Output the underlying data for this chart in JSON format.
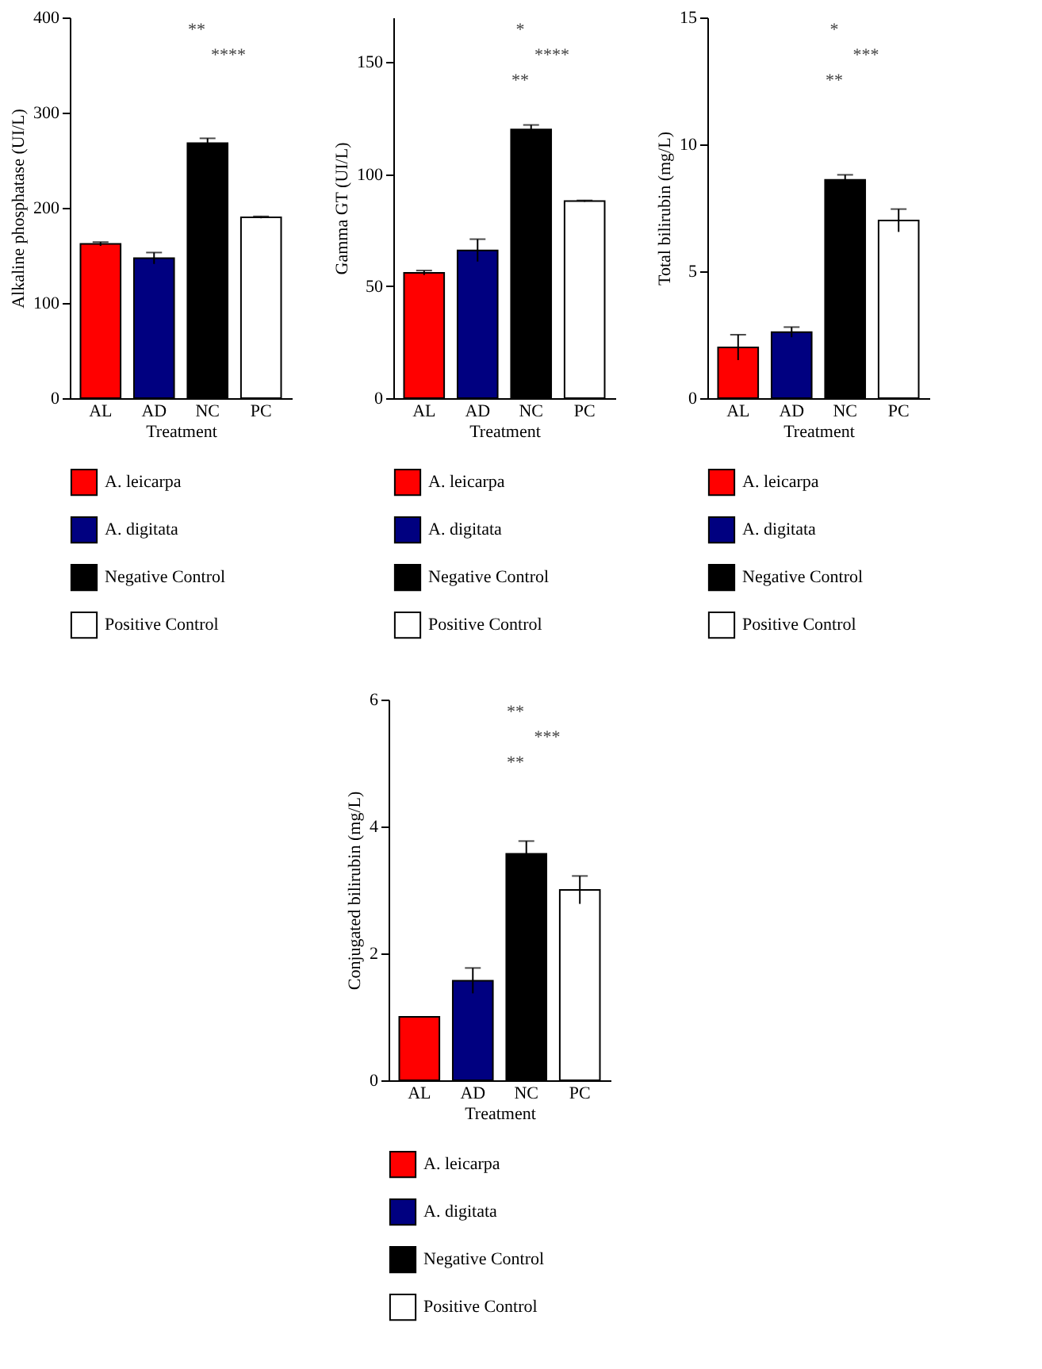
{
  "chart_data": [
    {
      "type": "bar",
      "categories": [
        "AL",
        "AD",
        "NC",
        "PC"
      ],
      "xlabel": "Treatment",
      "ylabel": "Alkaline phosphatase (UI/L)",
      "ylim": [
        0,
        400
      ],
      "yticks": [
        0,
        100,
        200,
        300,
        400
      ],
      "grid": false,
      "legend": "bottom",
      "series": [
        {
          "name": "A. leicarpa",
          "color": "#ff0000",
          "values": [
            162,
            null,
            null,
            null
          ],
          "errors": [
            2,
            null,
            null,
            null
          ]
        },
        {
          "name": "A. digitata",
          "color": "#000080",
          "values": [
            null,
            147,
            null,
            null
          ],
          "errors": [
            null,
            6,
            null,
            null
          ]
        },
        {
          "name": "Negative Control",
          "color": "#000000",
          "values": [
            null,
            null,
            268,
            null
          ],
          "errors": [
            null,
            null,
            5,
            null
          ]
        },
        {
          "name": "Positive Control",
          "color": "#ffffff",
          "values": [
            null,
            null,
            null,
            190
          ],
          "errors": [
            null,
            null,
            null,
            1
          ]
        }
      ],
      "annotations": [
        "**",
        "****"
      ]
    },
    {
      "type": "bar",
      "categories": [
        "AL",
        "AD",
        "NC",
        "PC"
      ],
      "xlabel": "Treatment",
      "ylabel": "Gamma GT (UI/L)",
      "ylim": [
        0,
        170
      ],
      "yticks": [
        0,
        50,
        100,
        150
      ],
      "grid": false,
      "legend": "bottom",
      "series": [
        {
          "name": "A. leicarpa",
          "color": "#ff0000",
          "values": [
            56,
            null,
            null,
            null
          ],
          "errors": [
            1,
            null,
            null,
            null
          ]
        },
        {
          "name": "A. digitata",
          "color": "#000080",
          "values": [
            null,
            66,
            null,
            null
          ],
          "errors": [
            null,
            5,
            null,
            null
          ]
        },
        {
          "name": "Negative Control",
          "color": "#000000",
          "values": [
            null,
            null,
            120,
            null
          ],
          "errors": [
            null,
            null,
            2,
            null
          ]
        },
        {
          "name": "Positive Control",
          "color": "#ffffff",
          "values": [
            null,
            null,
            null,
            88
          ],
          "errors": [
            null,
            null,
            null,
            0.3
          ]
        }
      ],
      "annotations": [
        "*",
        "****",
        "**"
      ]
    },
    {
      "type": "bar",
      "categories": [
        "AL",
        "AD",
        "NC",
        "PC"
      ],
      "xlabel": "Treatment",
      "ylabel": "Total bilirubin (mg/L)",
      "ylim": [
        0,
        15
      ],
      "yticks": [
        0,
        5,
        10,
        15
      ],
      "grid": false,
      "legend": "bottom",
      "series": [
        {
          "name": "A. leicarpa",
          "color": "#ff0000",
          "values": [
            2.0,
            null,
            null,
            null
          ],
          "errors": [
            0.5,
            null,
            null,
            null
          ]
        },
        {
          "name": "A. digitata",
          "color": "#000080",
          "values": [
            null,
            2.6,
            null,
            null
          ],
          "errors": [
            null,
            0.2,
            null,
            null
          ]
        },
        {
          "name": "Negative Control",
          "color": "#000000",
          "values": [
            null,
            null,
            8.6,
            null
          ],
          "errors": [
            null,
            null,
            0.2,
            null
          ]
        },
        {
          "name": "Positive Control",
          "color": "#ffffff",
          "values": [
            null,
            null,
            null,
            7.0
          ],
          "errors": [
            null,
            null,
            null,
            0.45
          ]
        }
      ],
      "annotations": [
        "*",
        "***",
        "**"
      ]
    },
    {
      "type": "bar",
      "categories": [
        "AL",
        "AD",
        "NC",
        "PC"
      ],
      "xlabel": "Treatment",
      "ylabel": "Conjugated bilirubin (mg/L)",
      "ylim": [
        0,
        6
      ],
      "yticks": [
        0,
        2,
        4,
        6
      ],
      "grid": false,
      "legend": "bottom",
      "series": [
        {
          "name": "A. leicarpa",
          "color": "#ff0000",
          "values": [
            1.0,
            null,
            null,
            null
          ],
          "errors": [
            0,
            null,
            null,
            null
          ]
        },
        {
          "name": "A. digitata",
          "color": "#000080",
          "values": [
            null,
            1.57,
            null,
            null
          ],
          "errors": [
            null,
            0.2,
            null,
            null
          ]
        },
        {
          "name": "Negative Control",
          "color": "#000000",
          "values": [
            null,
            null,
            3.57,
            null
          ],
          "errors": [
            null,
            null,
            0.2,
            null
          ]
        },
        {
          "name": "Positive Control",
          "color": "#ffffff",
          "values": [
            null,
            null,
            null,
            3.0
          ],
          "errors": [
            null,
            null,
            null,
            0.22
          ]
        }
      ],
      "annotations": [
        "**",
        "***",
        "**"
      ]
    }
  ]
}
